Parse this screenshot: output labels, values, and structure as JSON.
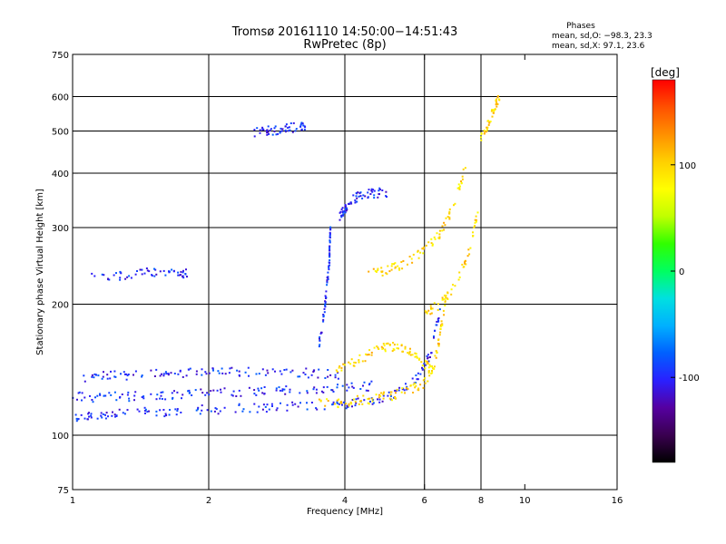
{
  "header": {
    "title_line1": "Tromsø 20161110 14:50:00−14:51:43",
    "title_line2": "RwPretec (8p)",
    "phases_heading": "Phases",
    "phases_o": "mean, sd,O: −98.3, 23.3",
    "phases_x": "mean, sd,X:  97.1, 23.6"
  },
  "chart_data": {
    "type": "scatter",
    "title": "Tromsø 20161110 14:50:00−14:51:43",
    "subtitle": "RwPretec (8p)",
    "xlabel": "Frequency [MHz]",
    "ylabel": "Stationary phase Virtual Height [km]",
    "x_scale": "log",
    "y_scale": "log",
    "xlim": [
      1,
      16
    ],
    "ylim": [
      75,
      750
    ],
    "x_ticks": [
      1,
      2,
      4,
      6,
      8,
      10,
      16
    ],
    "y_ticks": [
      75,
      100,
      200,
      300,
      400,
      500,
      600,
      750
    ],
    "x_gridlines": [
      2,
      4,
      6,
      8
    ],
    "y_gridlines": [
      100,
      200,
      300,
      400,
      500,
      600
    ],
    "grid": true,
    "colorbar": {
      "label": "[deg]",
      "range": [
        -180,
        180
      ],
      "ticks": [
        100,
        0,
        -100
      ],
      "colors": [
        "#000000",
        "#3a0050",
        "#5500a0",
        "#2a20ff",
        "#0060ff",
        "#00b0ff",
        "#00e0e0",
        "#00ff60",
        "#30ff00",
        "#c0ff00",
        "#ffff00",
        "#ffd000",
        "#ff9000",
        "#ff5000",
        "#ff0000"
      ]
    },
    "series": [
      {
        "name": "O",
        "phase_mean": -98.3,
        "phase_sd": 23.3,
        "traces": [
          {
            "x": [
              1.0,
              1.1,
              1.25,
              1.5,
              1.8,
              2.2,
              2.7,
              3.3,
              4.0,
              4.6,
              5.2,
              5.8,
              6.2,
              6.5
            ],
            "y": [
              109,
              111,
              112,
              113,
              114,
              115,
              116,
              117,
              118,
              120,
              125,
              135,
              155,
              195
            ]
          },
          {
            "x": [
              1.0,
              1.15,
              1.35,
              1.6,
              1.9,
              2.3,
              2.8,
              3.4,
              4.0,
              4.6
            ],
            "y": [
              123,
              122,
              123,
              124,
              125,
              126,
              127,
              127,
              128,
              130
            ]
          },
          {
            "x": [
              1.05,
              1.2,
              1.4,
              1.65,
              1.95,
              2.3,
              2.8,
              3.4,
              3.9
            ],
            "y": [
              136,
              137,
              138,
              139,
              139,
              140,
              140,
              139,
              138
            ]
          },
          {
            "x": [
              3.5,
              3.6,
              3.65,
              3.7,
              3.7,
              3.72
            ],
            "y": [
              160,
              190,
              220,
              250,
              270,
              300
            ]
          },
          {
            "x": [
              3.9,
              4.0,
              4.1,
              4.3,
              4.6,
              5.0
            ],
            "y": [
              320,
              330,
              345,
              355,
              360,
              362
            ]
          },
          {
            "x": [
              2.5,
              2.7,
              2.9,
              3.1,
              3.3
            ],
            "y": [
              495,
              500,
              505,
              510,
              512
            ]
          },
          {
            "x": [
              1.1,
              1.3,
              1.5,
              1.7,
              1.8
            ],
            "y": [
              235,
              232,
              237,
              236,
              236
            ]
          }
        ]
      },
      {
        "name": "X",
        "phase_mean": 97.1,
        "phase_sd": 23.6,
        "traces": [
          {
            "x": [
              3.5,
              4.0,
              4.5,
              5.0,
              5.5,
              6.0,
              6.3,
              6.5,
              6.7
            ],
            "y": [
              118,
              119,
              121,
              123,
              126,
              132,
              145,
              170,
              210
            ]
          },
          {
            "x": [
              3.8,
              4.2,
              4.6,
              5.0,
              5.4,
              5.8,
              6.2
            ],
            "y": [
              140,
              147,
              155,
              160,
              158,
              150,
              142
            ]
          },
          {
            "x": [
              4.5,
              5.0,
              5.5,
              6.0,
              6.5,
              7.0,
              7.4
            ],
            "y": [
              235,
              240,
              250,
              265,
              290,
              340,
              420
            ]
          },
          {
            "x": [
              6.0,
              6.5,
              7.0,
              7.5,
              7.9
            ],
            "y": [
              190,
              200,
              220,
              260,
              330
            ]
          },
          {
            "x": [
              8.0,
              8.3,
              8.6,
              8.8
            ],
            "y": [
              480,
              520,
              570,
              600
            ]
          }
        ]
      }
    ]
  }
}
